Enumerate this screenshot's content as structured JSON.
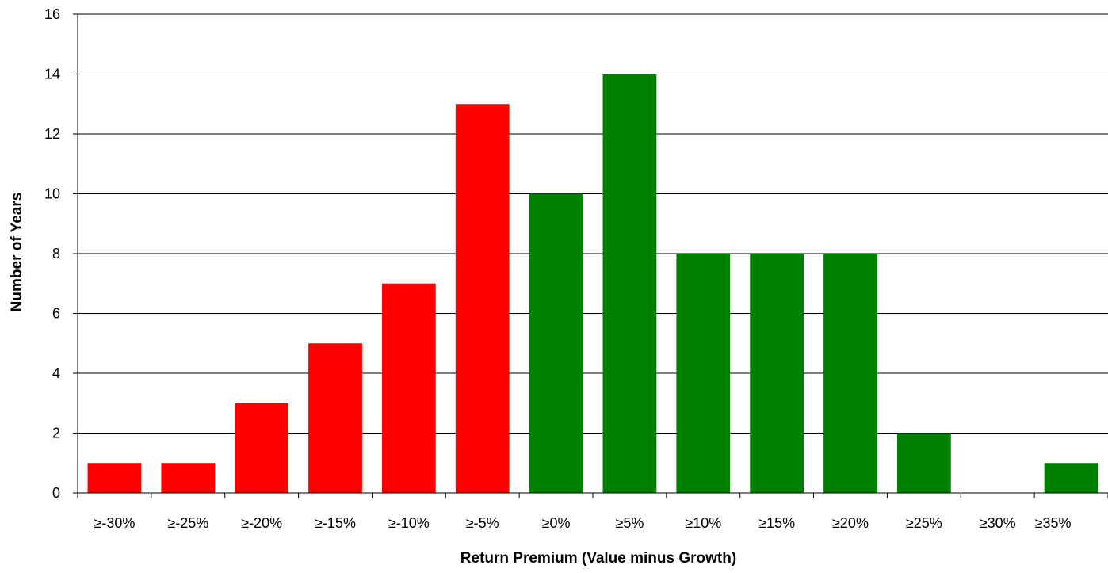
{
  "chart_data": {
    "type": "bar",
    "title": "",
    "xlabel": "Return Premium (Value minus Growth)",
    "ylabel": "Number of Years",
    "categories": [
      "≥-30%",
      "≥-25%",
      "≥-20%",
      "≥-15%",
      "≥-10%",
      "≥-5%",
      "≥0%",
      "≥5%",
      "≥10%",
      "≥15%",
      "≥20%",
      "≥25%",
      "≥30%",
      "≥35%"
    ],
    "values": [
      1,
      1,
      3,
      5,
      7,
      13,
      10,
      14,
      8,
      8,
      8,
      2,
      0,
      1
    ],
    "bar_colors": [
      "#ff0000",
      "#ff0000",
      "#ff0000",
      "#ff0000",
      "#ff0000",
      "#ff0000",
      "#008000",
      "#008000",
      "#008000",
      "#008000",
      "#008000",
      "#008000",
      "#008000",
      "#008000"
    ],
    "ylim": [
      0,
      16
    ],
    "yticks": [
      0,
      2,
      4,
      6,
      8,
      10,
      12,
      14,
      16
    ],
    "grid": true,
    "legend": "none"
  }
}
